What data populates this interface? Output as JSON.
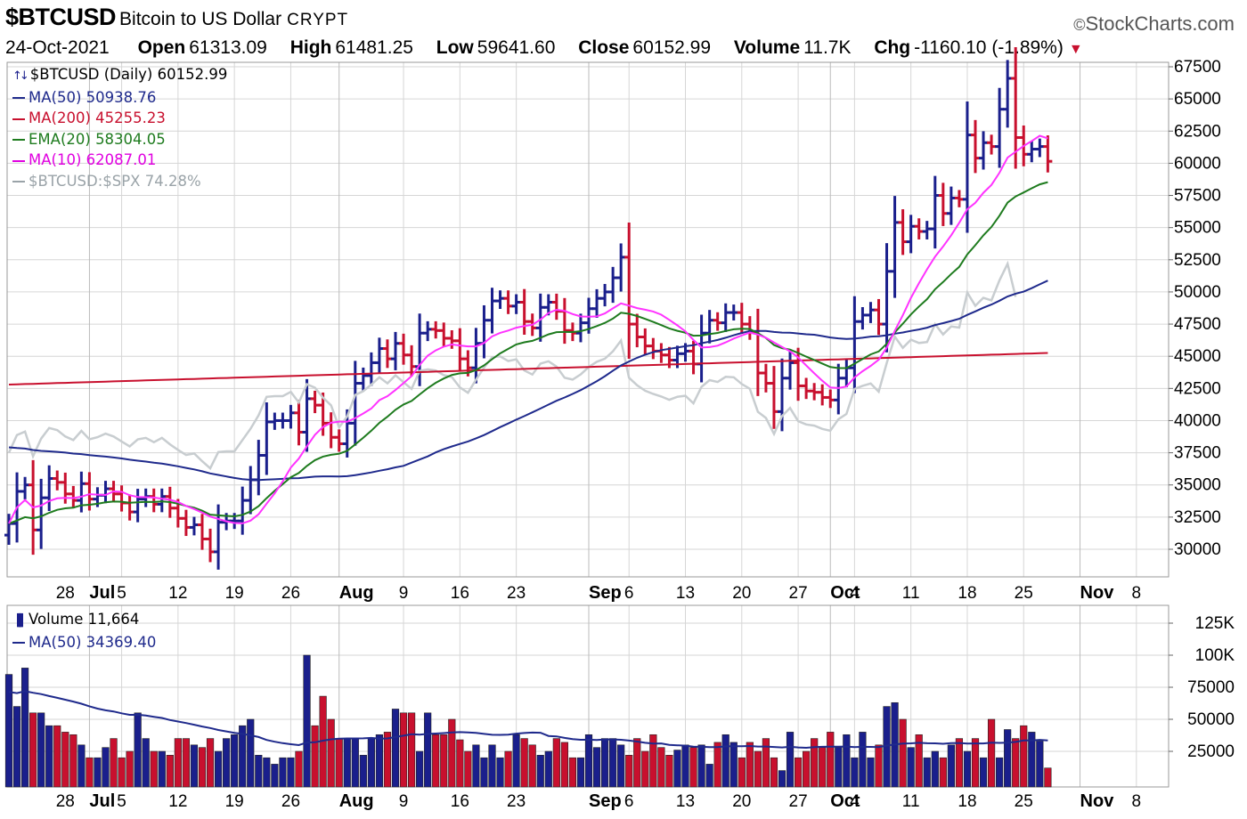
{
  "header": {
    "symbol": "$BTCUSD",
    "description": "Bitcoin to US Dollar",
    "exchange": "CRYPT",
    "brand": "StockCharts.com",
    "brand_icon": "copyright-icon",
    "date": "24-Oct-2021",
    "open_label": "Open",
    "open": "61313.09",
    "high_label": "High",
    "high": "61481.25",
    "low_label": "Low",
    "low": "59641.60",
    "close_label": "Close",
    "close": "60152.99",
    "volume_label": "Volume",
    "volume": "11.7K",
    "chg_label": "Chg",
    "chg": "-1160.10 (-1.89%)",
    "chg_icon": "down-triangle-icon"
  },
  "price_legend": [
    {
      "text": "$BTCUSD (Daily) 60152.99",
      "color": "#000000",
      "icon": "price-bars-icon"
    },
    {
      "text": "MA(50) 50938.76",
      "color": "#1f2a8c"
    },
    {
      "text": "MA(200) 45255.23",
      "color": "#c8102e"
    },
    {
      "text": "EMA(20) 58304.05",
      "color": "#1e7b1e"
    },
    {
      "text": "MA(10) 62087.01",
      "color": "#e000e0"
    },
    {
      "text": "$BTCUSD:$SPX 74.28%",
      "color": "#9aa3a8"
    }
  ],
  "volume_legend": [
    {
      "text": "Volume 11,664",
      "color": "#000000",
      "icon": "volume-bars-icon"
    },
    {
      "text": "MA(50) 34369.40",
      "color": "#1f2a8c"
    }
  ],
  "colors": {
    "up": "#1a1f8c",
    "down": "#c8102e",
    "ma50": "#1f2a8c",
    "ma200": "#c8102e",
    "ema20": "#1e7b1e",
    "ma10": "#ff33ff",
    "ratio": "#c8cdd0",
    "grid": "#d6d6d6"
  },
  "x_ticks": [
    {
      "label": "28",
      "bold": false,
      "date": "2021-06-28"
    },
    {
      "label": "Jul",
      "bold": true,
      "date": "2021-07-01"
    },
    {
      "label": "5",
      "bold": false,
      "date": "2021-07-05"
    },
    {
      "label": "12",
      "bold": false,
      "date": "2021-07-12"
    },
    {
      "label": "19",
      "bold": false,
      "date": "2021-07-19"
    },
    {
      "label": "26",
      "bold": false,
      "date": "2021-07-26"
    },
    {
      "label": "Aug",
      "bold": true,
      "date": "2021-08-01"
    },
    {
      "label": "9",
      "bold": false,
      "date": "2021-08-09"
    },
    {
      "label": "16",
      "bold": false,
      "date": "2021-08-16"
    },
    {
      "label": "23",
      "bold": false,
      "date": "2021-08-23"
    },
    {
      "label": "Sep",
      "bold": true,
      "date": "2021-09-01"
    },
    {
      "label": "6",
      "bold": false,
      "date": "2021-09-06"
    },
    {
      "label": "13",
      "bold": false,
      "date": "2021-09-13"
    },
    {
      "label": "20",
      "bold": false,
      "date": "2021-09-20"
    },
    {
      "label": "27",
      "bold": false,
      "date": "2021-09-27"
    },
    {
      "label": "Oct",
      "bold": true,
      "date": "2021-10-01"
    },
    {
      "label": "4",
      "bold": false,
      "date": "2021-10-04"
    },
    {
      "label": "11",
      "bold": false,
      "date": "2021-10-11"
    },
    {
      "label": "18",
      "bold": false,
      "date": "2021-10-18"
    },
    {
      "label": "25",
      "bold": false,
      "date": "2021-10-25"
    },
    {
      "label": "Nov",
      "bold": true,
      "date": "2021-11-01"
    },
    {
      "label": "8",
      "bold": false,
      "date": "2021-11-08"
    }
  ],
  "chart_data": [
    {
      "type": "ohlc",
      "title": "$BTCUSD (Daily) 60152.99",
      "x_start": "2021-06-21",
      "x_end": "2021-11-12",
      "ylim": [
        28000,
        68500
      ],
      "y_ticks": [
        30000,
        32500,
        35000,
        37500,
        40000,
        42500,
        45000,
        47500,
        50000,
        52500,
        55000,
        57500,
        60000,
        62500,
        65000,
        67500
      ],
      "grid": true,
      "closes": [
        32000,
        34500,
        35000,
        31500,
        34000,
        35500,
        35200,
        34300,
        33800,
        35100,
        33900,
        34200,
        34700,
        34300,
        33600,
        32900,
        33900,
        34100,
        33500,
        34100,
        33200,
        32400,
        31700,
        31900,
        30800,
        29800,
        32100,
        32200,
        32200,
        33800,
        35400,
        37300,
        39900,
        40000,
        40000,
        40600,
        39100,
        41700,
        41200,
        39800,
        38700,
        38200,
        39800,
        42900,
        43500,
        44500,
        45600,
        44800,
        46000,
        45100,
        44200,
        46800,
        47100,
        47000,
        46400,
        46200,
        44800,
        44100,
        46000,
        47800,
        49300,
        49500,
        48900,
        49200,
        47700,
        47200,
        48800,
        49200,
        48500,
        47000,
        46800,
        47600,
        48700,
        49500,
        50000,
        51100,
        52700,
        47500,
        46500,
        45800,
        45400,
        45100,
        44700,
        45200,
        45400,
        44400,
        46800,
        47800,
        47600,
        48400,
        48400,
        47500,
        46900,
        43700,
        42900,
        40700,
        43300,
        44500,
        42700,
        42300,
        42200,
        41800,
        41600,
        43300,
        44100,
        47700,
        48200,
        48600,
        47500,
        51600,
        55400,
        53900,
        55100,
        54700,
        54900,
        57500,
        56100,
        57300,
        57200,
        62200,
        60400,
        61600,
        61300,
        64200,
        66600,
        62000,
        60700,
        61100,
        61300,
        60152
      ],
      "volume": [
        85000,
        60000,
        90000,
        55000,
        55000,
        45000,
        45000,
        40000,
        38000,
        30000,
        20000,
        20000,
        28000,
        35000,
        20000,
        25000,
        55000,
        35000,
        25000,
        25000,
        22000,
        35000,
        35000,
        30000,
        28000,
        35000,
        25000,
        35000,
        38000,
        45000,
        50000,
        22000,
        20000,
        15000,
        20000,
        20000,
        25000,
        100000,
        45000,
        68000,
        50000,
        35000,
        35000,
        35000,
        22000,
        35000,
        38000,
        40000,
        58000,
        55000,
        55000,
        25000,
        55000,
        38000,
        38000,
        50000,
        34000,
        25000,
        30000,
        20000,
        30000,
        20000,
        25000,
        38000,
        35000,
        30000,
        22000,
        25000,
        35000,
        32000,
        20000,
        20000,
        38000,
        28000,
        35000,
        35000,
        30000,
        22000,
        35000,
        25000,
        38000,
        28000,
        22000,
        26000,
        30000,
        28000,
        30000,
        15000,
        32000,
        38000,
        32000,
        20000,
        32000,
        25000,
        35000,
        20000,
        10000,
        40000,
        20000,
        25000,
        35000,
        28000,
        40000,
        28000,
        38000,
        20000,
        40000,
        20000,
        30000,
        60000,
        63000,
        50000,
        28000,
        38000,
        20000,
        25000,
        20000,
        30000,
        35000,
        25000,
        35000,
        20000,
        50000,
        20000,
        42000,
        35000,
        45000,
        40000,
        33000,
        12000
      ],
      "series": [
        {
          "name": "MA(50)",
          "last": 50938.76
        },
        {
          "name": "MA(200)",
          "last": 45255.23
        },
        {
          "name": "EMA(20)",
          "last": 58304.05
        },
        {
          "name": "MA(10)",
          "last": 62087.01
        },
        {
          "name": "$BTCUSD:$SPX",
          "last": "74.28%"
        }
      ]
    },
    {
      "type": "bar",
      "title": "Volume 11,664",
      "ylim": [
        0,
        140000
      ],
      "y_ticks": [
        25000,
        50000,
        75000,
        100000,
        125000
      ],
      "y_tick_labels": [
        "25000",
        "50000",
        "75000",
        "100K",
        "125K"
      ],
      "grid": true,
      "series": [
        {
          "name": "MA(50)",
          "last": 34369.4
        }
      ]
    }
  ]
}
